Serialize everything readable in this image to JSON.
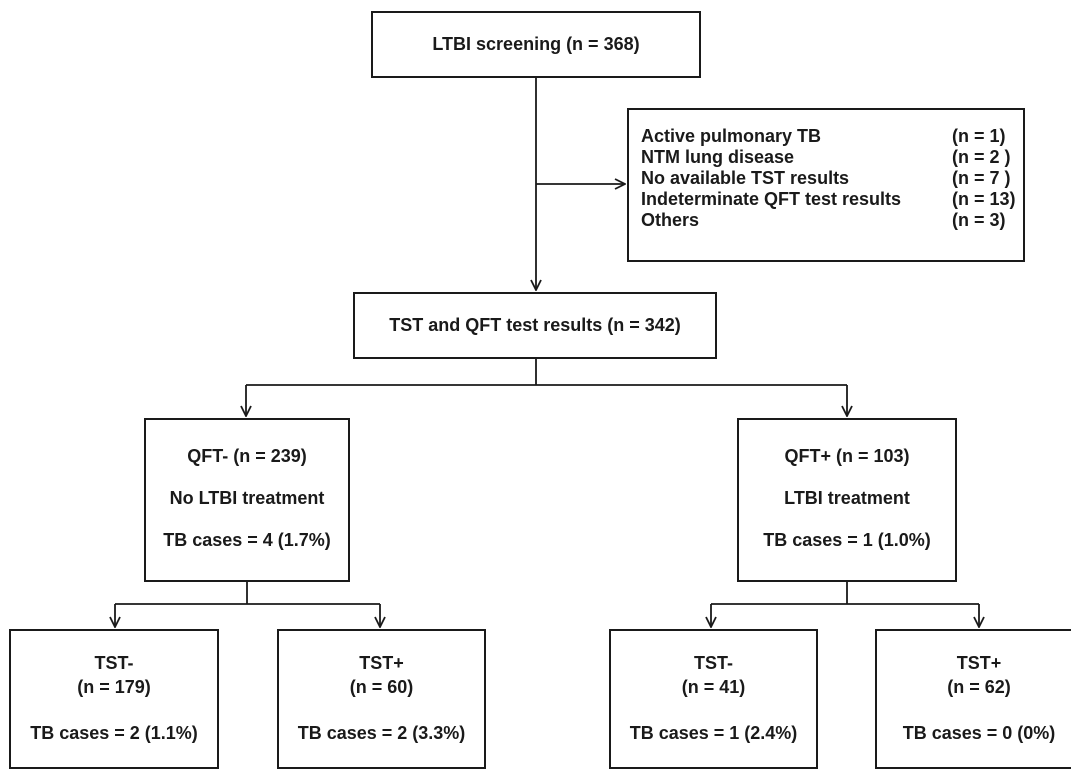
{
  "screening": {
    "label": "LTBI screening (n = 368)"
  },
  "excluded": {
    "items": [
      {
        "reason": "Active pulmonary TB",
        "count": "(n = 1)"
      },
      {
        "reason": "NTM lung disease",
        "count": "(n = 2 )"
      },
      {
        "reason": "No available TST results",
        "count": "(n = 7 )"
      },
      {
        "reason": "Indeterminate QFT test results",
        "count": "(n = 13)"
      },
      {
        "reason": "Others",
        "count": "(n = 3)"
      }
    ]
  },
  "results": {
    "label": "TST and QFT test results (n = 342)"
  },
  "qft_negative": {
    "group": "QFT- (n = 239)",
    "treatment": "No LTBI treatment",
    "cases": "TB cases = 4 (1.7%)"
  },
  "qft_positive": {
    "group": "QFT+ (n = 103)",
    "treatment": "LTBI treatment",
    "cases": "TB cases = 1 (1.0%)"
  },
  "qft_negative_tst_negative": {
    "label": "TST-",
    "n": "(n = 179)",
    "cases": "TB cases = 2 (1.1%)"
  },
  "qft_negative_tst_positive": {
    "label": "TST+",
    "n": "(n = 60)",
    "cases": "TB cases = 2 (3.3%)"
  },
  "qft_positive_tst_negative": {
    "label": "TST-",
    "n": "(n = 41)",
    "cases": "TB cases = 1 (2.4%)"
  },
  "qft_positive_tst_positive": {
    "label": "TST+",
    "n": "(n = 62)",
    "cases": "TB cases = 0 (0%)"
  },
  "colors": {
    "stroke": "#1a1a1a",
    "background": "#ffffff"
  }
}
